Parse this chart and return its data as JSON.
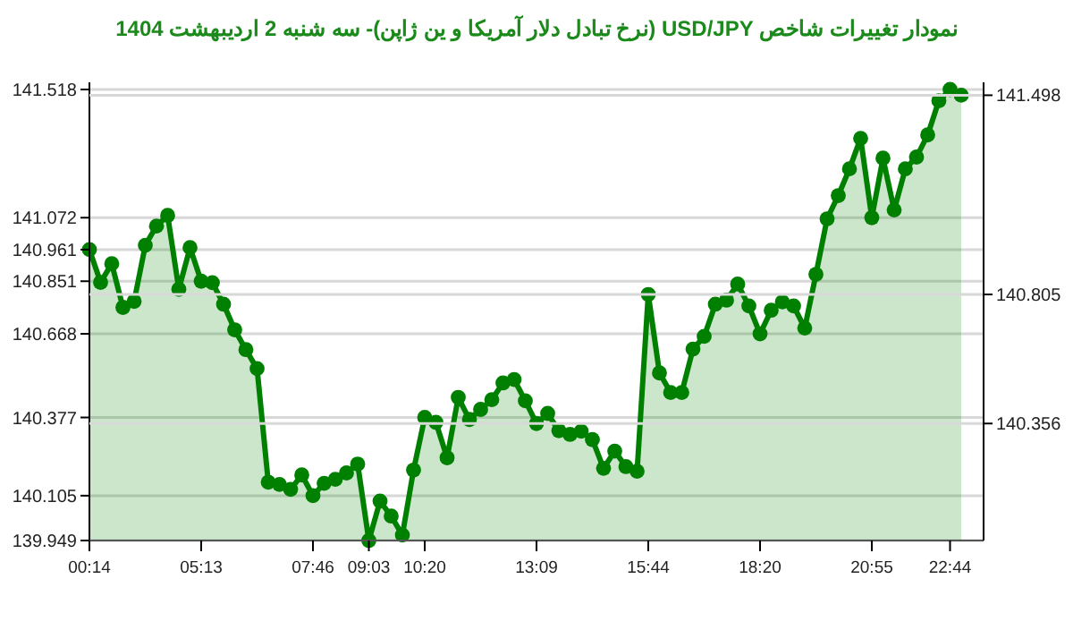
{
  "chart_data": {
    "type": "area",
    "title": "نمودار تغییرات شاخص USD/JPY (نرخ تبادل دلار آمریکا و ین ژاپن)- سه شنبه  2 اردیبهشت 1404",
    "categories": [
      "00:14",
      null,
      null,
      null,
      null,
      null,
      null,
      null,
      null,
      null,
      "05:13",
      null,
      null,
      null,
      null,
      null,
      null,
      null,
      null,
      null,
      "07:46",
      null,
      null,
      null,
      null,
      "09:03",
      null,
      null,
      null,
      null,
      "10:20",
      null,
      null,
      null,
      null,
      null,
      null,
      null,
      null,
      null,
      "13:09",
      null,
      null,
      null,
      null,
      null,
      null,
      null,
      null,
      null,
      "15:44",
      null,
      null,
      null,
      null,
      null,
      null,
      null,
      null,
      null,
      "18:20",
      null,
      null,
      null,
      null,
      null,
      null,
      null,
      null,
      null,
      "20:55",
      null,
      null,
      null,
      null,
      null,
      null,
      "22:44",
      null
    ],
    "series": [
      {
        "color": "#008000",
        "values": [
          140.961,
          140.847,
          140.912,
          140.76,
          140.781,
          140.976,
          141.043,
          141.08,
          140.823,
          140.968,
          140.851,
          140.846,
          140.771,
          140.682,
          140.613,
          140.547,
          140.152,
          140.144,
          140.127,
          140.177,
          140.105,
          140.148,
          140.162,
          140.184,
          140.215,
          139.949,
          140.086,
          140.034,
          139.968,
          140.194,
          140.377,
          140.36,
          140.237,
          140.447,
          140.37,
          140.405,
          140.439,
          140.497,
          140.509,
          140.435,
          140.356,
          140.391,
          140.331,
          140.318,
          140.329,
          140.3,
          140.2,
          140.26,
          140.206,
          140.19,
          140.805,
          140.532,
          140.464,
          140.464,
          140.615,
          140.659,
          140.771,
          140.785,
          140.841,
          140.765,
          140.668,
          140.75,
          140.779,
          140.765,
          140.688,
          140.875,
          141.068,
          141.149,
          141.242,
          141.348,
          141.072,
          141.279,
          141.099,
          141.242,
          141.283,
          141.36,
          141.479,
          141.518,
          141.498
        ]
      }
    ],
    "ylim": [
      139.949,
      141.518
    ],
    "yticks": [
      141.518,
      141.072,
      140.961,
      140.851,
      140.668,
      140.377,
      140.105,
      139.949
    ],
    "y2lim": [
      139.949,
      141.518
    ],
    "y2ticks": [
      141.498,
      140.805,
      140.356
    ],
    "grid": "y",
    "marker": "circle",
    "line_style": "solid"
  }
}
